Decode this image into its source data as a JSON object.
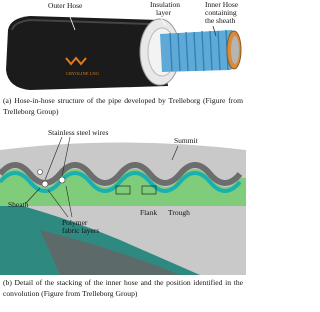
{
  "figure_a": {
    "labels": {
      "outer_hose": "Outer Hose",
      "insulation": [
        "Insulation",
        "layer"
      ],
      "inner_hose": [
        "Inner Hose",
        "containing",
        "the sheath"
      ],
      "logo": "CRYOLINE LNG"
    },
    "caption": "(a) Hose-in-hose structure of the pipe developed by Trelleborg (Figure from Trelleborg Group)"
  },
  "figure_b": {
    "labels": {
      "wires": "Stainless steel wires",
      "summit": "Summit",
      "sheath": "Sheath",
      "fabric": [
        "Polymer",
        "fabric layers"
      ],
      "flank": "Flank",
      "trough": "Trough"
    },
    "caption": "(b) Detail of the stacking of the inner hose and the position identified in the convolution (Figure from Trelleborg Group)"
  }
}
